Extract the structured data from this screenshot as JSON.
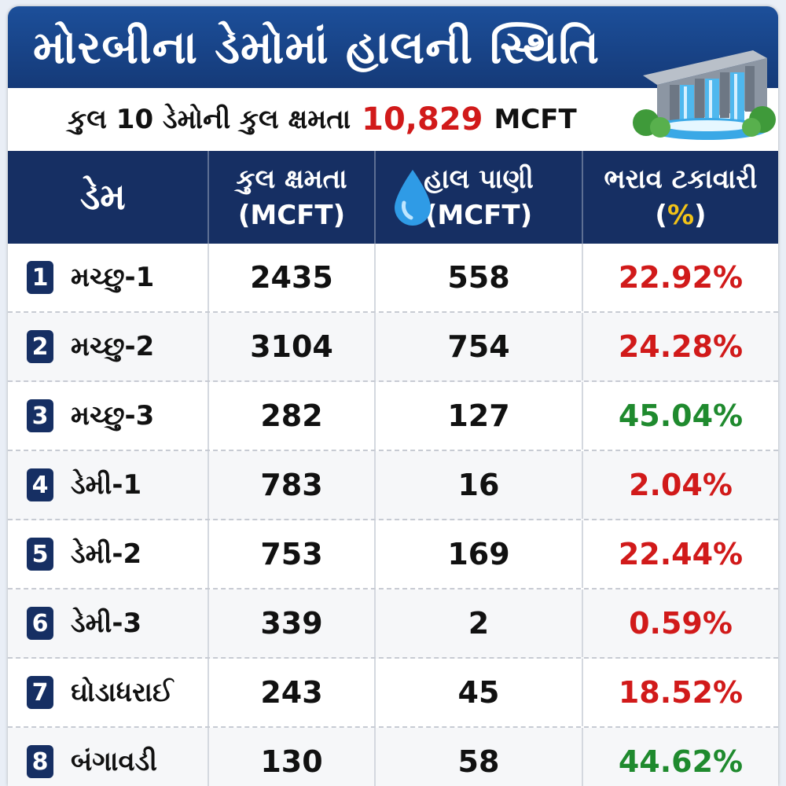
{
  "title": "મોરબીના ડેમોમાં હાલની સ્થિતિ",
  "subtitle": {
    "prefix": "કુલ 10 ડેમોની કુલ ક્ષમતા",
    "total_value": "10,829",
    "unit": "MCFT"
  },
  "table": {
    "headers": {
      "dam": "ડેમ",
      "capacity_line1": "કુલ ક્ષમતા",
      "capacity_line2": "(MCFT)",
      "water_line1": "હાલ પાણી",
      "water_line2": "(MCFT)",
      "pct_line1": "ભરાવ ટકાવારી",
      "pct_open": "(",
      "pct_symbol": "%",
      "pct_close": ")"
    },
    "rows": [
      {
        "no": "1",
        "name": "મચ્છુ-1",
        "capacity": "2435",
        "water": "558",
        "pct": "22.92%",
        "pct_color": "#d11a1a"
      },
      {
        "no": "2",
        "name": "મચ્છુ-2",
        "capacity": "3104",
        "water": "754",
        "pct": "24.28%",
        "pct_color": "#d11a1a"
      },
      {
        "no": "3",
        "name": "મચ્છુ-3",
        "capacity": "282",
        "water": "127",
        "pct": "45.04%",
        "pct_color": "#1f8a2e"
      },
      {
        "no": "4",
        "name": "ડેમી-1",
        "capacity": "783",
        "water": "16",
        "pct": "2.04%",
        "pct_color": "#d11a1a"
      },
      {
        "no": "5",
        "name": "ડેમી-2",
        "capacity": "753",
        "water": "169",
        "pct": "22.44%",
        "pct_color": "#d11a1a"
      },
      {
        "no": "6",
        "name": "ડેમી-3",
        "capacity": "339",
        "water": "2",
        "pct": "0.59%",
        "pct_color": "#d11a1a"
      },
      {
        "no": "7",
        "name": "ઘોડાધરાઈ",
        "capacity": "243",
        "water": "45",
        "pct": "18.52%",
        "pct_color": "#d11a1a"
      },
      {
        "no": "8",
        "name": "બંગાવડી",
        "capacity": "130",
        "water": "58",
        "pct": "44.62%",
        "pct_color": "#1f8a2e"
      }
    ]
  },
  "colors": {
    "header_bg": "#162f63",
    "title_bg": "#1c4f9a",
    "low_pct": "#d11a1a",
    "high_pct": "#1f8a2e",
    "pct_symbol": "#f2c318"
  },
  "icons": {
    "dam": "dam-waterfall-icon",
    "water": "water-drop-icon"
  }
}
